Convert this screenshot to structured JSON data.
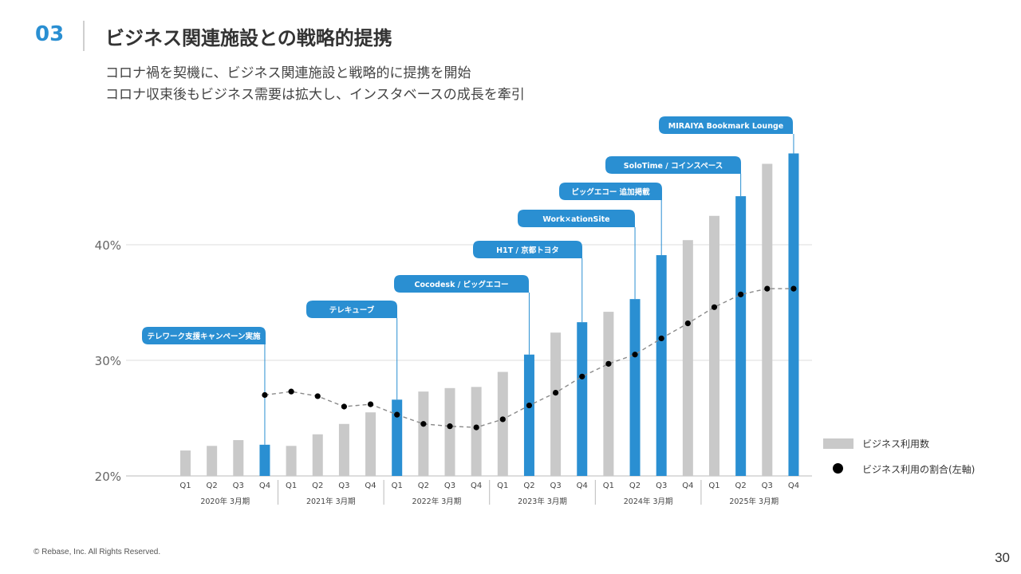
{
  "header": {
    "section_number": "03",
    "title": "ビジネス関連施設との戦略的提携"
  },
  "subtitle": {
    "line1": "コロナ禍を契機に、ビジネス関連施設と戦略的に提携を開始",
    "line2": "コロナ収束後もビジネス需要は拡大し、インスタベースの成長を牽引"
  },
  "footer": {
    "copyright": "© Rebase, Inc. All Rights Reserved.",
    "page_number": "30"
  },
  "legend": {
    "bar_label": "ビジネス利用数",
    "dot_label": "ビジネス利用の割合(左軸)"
  },
  "chart_data": {
    "type": "bar",
    "quarters": [
      "Q1",
      "Q2",
      "Q3",
      "Q4",
      "Q1",
      "Q2",
      "Q3",
      "Q4",
      "Q1",
      "Q2",
      "Q3",
      "Q4",
      "Q1",
      "Q2",
      "Q3",
      "Q4",
      "Q1",
      "Q2",
      "Q3",
      "Q4",
      "Q1",
      "Q2",
      "Q3",
      "Q4"
    ],
    "fiscal_years": [
      "2020年 3月期",
      "2021年 3月期",
      "2022年 3月期",
      "2023年 3月期",
      "2024年 3月期",
      "2025年 3月期"
    ],
    "series": [
      {
        "name": "ビジネス利用数",
        "axis": "unlabeled",
        "values": [
          22.2,
          22.6,
          23.1,
          22.7,
          22.6,
          23.6,
          24.5,
          25.5,
          26.6,
          27.3,
          27.6,
          27.7,
          29.0,
          30.5,
          32.4,
          33.3,
          34.2,
          35.3,
          39.1,
          40.4,
          42.5,
          44.2,
          47.0,
          47.9
        ]
      },
      {
        "name": "ビジネス利用の割合(左軸)",
        "axis": "left",
        "unit": "%",
        "values": [
          null,
          null,
          null,
          27.0,
          27.3,
          26.9,
          26.0,
          26.2,
          25.3,
          24.5,
          24.3,
          24.2,
          24.9,
          26.1,
          27.2,
          28.6,
          29.7,
          30.5,
          31.9,
          33.2,
          34.6,
          35.7,
          36.2,
          36.2
        ]
      }
    ],
    "highlight_indices": [
      3,
      8,
      13,
      15,
      17,
      18,
      21,
      23
    ],
    "y_axis": {
      "ticks": [
        "20%",
        "30%",
        "40%"
      ],
      "tick_values": [
        20,
        30,
        40
      ],
      "range": [
        20,
        50
      ]
    },
    "annotations": [
      {
        "label": "テレワーク支援キャンペーン実施",
        "bar_index": 3
      },
      {
        "label": "テレキューブ",
        "bar_index": 8
      },
      {
        "label": "Cocodesk / ピッグエコー",
        "bar_index": 13
      },
      {
        "label": "H1T / 京都トヨタ",
        "bar_index": 15
      },
      {
        "label": "Work×ationSite",
        "bar_index": 17
      },
      {
        "label": "ピッグエコー 追加掲載",
        "bar_index": 18
      },
      {
        "label": "SoloTime / コインスペース",
        "bar_index": 21
      },
      {
        "label": "MIRAIYA Bookmark Lounge",
        "bar_index": 23
      }
    ],
    "colors": {
      "bar": "#c9c9c9",
      "highlight": "#2a8fd2",
      "dot": "#000000",
      "line": "#8a8a8a",
      "grid": "#dddddd"
    },
    "grid": true,
    "legend_position": "right"
  }
}
